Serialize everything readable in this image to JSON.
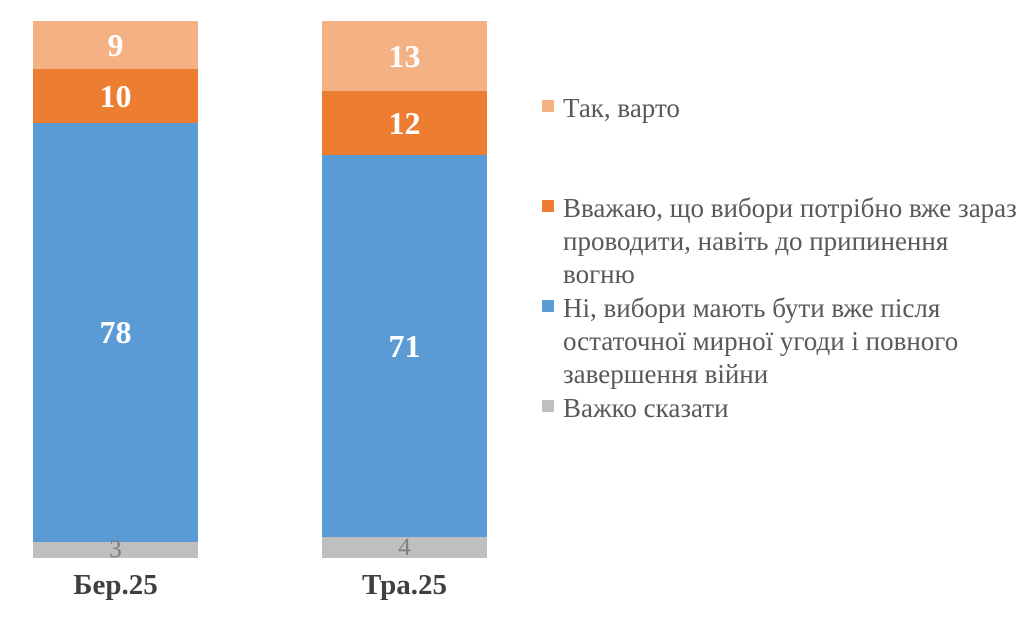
{
  "chart_data": {
    "type": "bar",
    "variant": "stacked-column",
    "title": "",
    "xlabel": "",
    "ylabel": "",
    "categories": [
      "Бер.25",
      "Тра.25"
    ],
    "series": [
      {
        "name": "Так, варто",
        "color": "#F4B183",
        "label_color": "#FFFFFF",
        "values": [
          9,
          13
        ]
      },
      {
        "name": "Вважаю, що вибори потрібно вже зараз проводити, навіть до припинення вогню",
        "color": "#ED7D31",
        "label_color": "#FFFFFF",
        "values": [
          10,
          12
        ]
      },
      {
        "name": "Ні, вибори мають бути вже після остаточної мирної угоди і повного завершення війни",
        "color": "#5B9BD5",
        "label_color": "#FFFFFF",
        "values": [
          78,
          71
        ]
      },
      {
        "name": "Важко сказати",
        "color": "#BFBFBF",
        "label_color": "#7F7F7F",
        "values": [
          3,
          4
        ]
      }
    ],
    "stack_order": "top-to-bottom",
    "value_total": 100,
    "data_labels": true,
    "legend_position": "right",
    "axes_visible": false,
    "gridlines": false,
    "background": "#FFFFFF"
  }
}
